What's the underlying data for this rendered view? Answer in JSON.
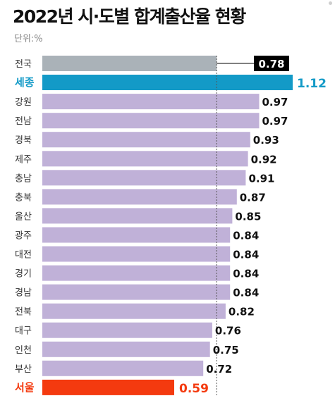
{
  "title": "2022년 시·도별 합계출산율 현황",
  "unit_label": "단위:%",
  "colors": {
    "default": "#c0b1d8",
    "national": "#aab2b8",
    "highest": "#139ac7",
    "lowest": "#f43a0f",
    "national_label_bg": "#000000"
  },
  "chart_data": {
    "type": "bar",
    "orientation": "horizontal",
    "categories": [
      "전국",
      "세종",
      "강원",
      "전남",
      "경북",
      "제주",
      "충남",
      "충북",
      "울산",
      "광주",
      "대전",
      "경기",
      "경남",
      "전북",
      "대구",
      "인천",
      "부산",
      "서울"
    ],
    "values": [
      0.78,
      1.12,
      0.97,
      0.97,
      0.93,
      0.92,
      0.91,
      0.87,
      0.85,
      0.84,
      0.84,
      0.84,
      0.84,
      0.82,
      0.76,
      0.75,
      0.72,
      0.59
    ],
    "value_labels": [
      "0.78",
      "1.12",
      "0.97",
      "0.97",
      "0.93",
      "0.92",
      "0.91",
      "0.87",
      "0.85",
      "0.84",
      "0.84",
      "0.84",
      "0.84",
      "0.82",
      "0.76",
      "0.75",
      "0.72",
      "0.59"
    ],
    "highlight": {
      "national": "전국",
      "highest": "세종",
      "lowest": "서울"
    },
    "reference_line": {
      "value": 0.78,
      "style": "dotted"
    },
    "xlim": [
      0,
      1.12
    ]
  }
}
